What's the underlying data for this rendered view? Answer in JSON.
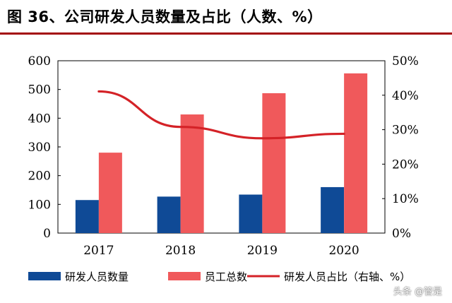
{
  "title": "图 36、公司研发人员数量及占比（人数、%）",
  "watermark": "头条 @管是",
  "colors": {
    "rd_staff": "#0f4a96",
    "total_staff": "#f0595b",
    "ratio_line": "#d42227",
    "title_rule": "#a3090d"
  },
  "chart_data": {
    "type": "bar",
    "categories": [
      "2017",
      "2018",
      "2019",
      "2020"
    ],
    "series": [
      {
        "name": "研发人员数量",
        "kind": "bar",
        "axis": "left",
        "values": [
          115,
          127,
          134,
          160
        ]
      },
      {
        "name": "员工总数",
        "kind": "bar",
        "axis": "left",
        "values": [
          280,
          413,
          487,
          556
        ]
      },
      {
        "name": "研发人员占比（右轴、%）",
        "kind": "line",
        "axis": "right",
        "values": [
          41.1,
          30.8,
          27.5,
          28.8
        ]
      }
    ],
    "ylim": [
      0,
      600
    ],
    "yticks": [
      "0",
      "100",
      "200",
      "300",
      "400",
      "500",
      "600"
    ],
    "y2lim": [
      0,
      50
    ],
    "y2ticks": [
      "0%",
      "10%",
      "20%",
      "30%",
      "40%",
      "50%"
    ],
    "legend_position": "bottom",
    "grid": false
  }
}
